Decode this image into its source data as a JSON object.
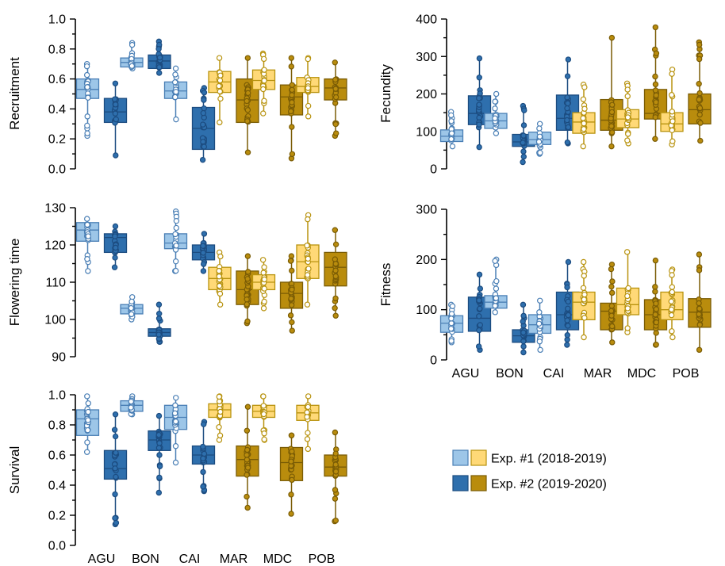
{
  "chart_data": [
    {
      "id": "recruitment",
      "type": "box",
      "ylabel": "Recruitment",
      "ylim": [
        0.0,
        1.0
      ],
      "yticks": [
        0.0,
        0.2,
        0.4,
        0.6,
        0.8,
        1.0
      ],
      "ytick_labels": [
        "0.0",
        "0.2",
        "0.4",
        "0.6",
        "0.8",
        "1.0"
      ],
      "categories": [
        "AGU",
        "BON",
        "CAI",
        "MAR",
        "MDC",
        "POB"
      ],
      "show_category_labels": false,
      "boxes": [
        {
          "cat": "AGU",
          "exp": 1,
          "min": 0.22,
          "q1": 0.47,
          "median": 0.53,
          "q3": 0.6,
          "max": 0.7
        },
        {
          "cat": "AGU",
          "exp": 2,
          "min": 0.09,
          "q1": 0.31,
          "median": 0.38,
          "q3": 0.47,
          "max": 0.57
        },
        {
          "cat": "BON",
          "exp": 1,
          "min": 0.67,
          "q1": 0.68,
          "median": 0.71,
          "q3": 0.74,
          "max": 0.84
        },
        {
          "cat": "BON",
          "exp": 2,
          "min": 0.64,
          "q1": 0.67,
          "median": 0.72,
          "q3": 0.76,
          "max": 0.85
        },
        {
          "cat": "CAI",
          "exp": 1,
          "min": 0.33,
          "q1": 0.47,
          "median": 0.52,
          "q3": 0.58,
          "max": 0.67
        },
        {
          "cat": "CAI",
          "exp": 2,
          "min": 0.06,
          "q1": 0.13,
          "median": 0.27,
          "q3": 0.41,
          "max": 0.54
        },
        {
          "cat": "MAR",
          "exp": 1,
          "min": 0.31,
          "q1": 0.51,
          "median": 0.58,
          "q3": 0.65,
          "max": 0.74
        },
        {
          "cat": "MAR",
          "exp": 2,
          "min": 0.11,
          "q1": 0.31,
          "median": 0.46,
          "q3": 0.6,
          "max": 0.74
        },
        {
          "cat": "MDC",
          "exp": 1,
          "min": 0.37,
          "q1": 0.53,
          "median": 0.59,
          "q3": 0.66,
          "max": 0.77
        },
        {
          "cat": "MDC",
          "exp": 2,
          "min": 0.07,
          "q1": 0.36,
          "median": 0.48,
          "q3": 0.56,
          "max": 0.74
        },
        {
          "cat": "POB",
          "exp": 1,
          "min": 0.35,
          "q1": 0.51,
          "median": 0.55,
          "q3": 0.61,
          "max": 0.74
        },
        {
          "cat": "POB",
          "exp": 2,
          "min": 0.22,
          "q1": 0.46,
          "median": 0.54,
          "q3": 0.6,
          "max": 0.71
        }
      ]
    },
    {
      "id": "fecundity",
      "type": "box",
      "ylabel": "Fecundity",
      "ylim": [
        0,
        400
      ],
      "yticks": [
        0,
        100,
        200,
        300,
        400
      ],
      "ytick_labels": [
        "0",
        "100",
        "200",
        "300",
        "400"
      ],
      "categories": [
        "AGU",
        "BON",
        "CAI",
        "MAR",
        "MDC",
        "POB"
      ],
      "show_category_labels": false,
      "boxes": [
        {
          "cat": "AGU",
          "exp": 1,
          "min": 60,
          "q1": 73,
          "median": 87,
          "q3": 104,
          "max": 152
        },
        {
          "cat": "AGU",
          "exp": 2,
          "min": 58,
          "q1": 118,
          "median": 148,
          "q3": 195,
          "max": 295
        },
        {
          "cat": "BON",
          "exp": 1,
          "min": 95,
          "q1": 108,
          "median": 128,
          "q3": 148,
          "max": 200
        },
        {
          "cat": "BON",
          "exp": 2,
          "min": 18,
          "q1": 60,
          "median": 72,
          "q3": 92,
          "max": 168
        },
        {
          "cat": "CAI",
          "exp": 1,
          "min": 40,
          "q1": 65,
          "median": 78,
          "q3": 98,
          "max": 120
        },
        {
          "cat": "CAI",
          "exp": 2,
          "min": 68,
          "q1": 103,
          "median": 135,
          "q3": 197,
          "max": 292
        },
        {
          "cat": "MAR",
          "exp": 1,
          "min": 60,
          "q1": 95,
          "median": 125,
          "q3": 150,
          "max": 225
        },
        {
          "cat": "MAR",
          "exp": 2,
          "min": 60,
          "q1": 103,
          "median": 130,
          "q3": 185,
          "max": 350
        },
        {
          "cat": "MDC",
          "exp": 1,
          "min": 68,
          "q1": 110,
          "median": 133,
          "q3": 158,
          "max": 228
        },
        {
          "cat": "MDC",
          "exp": 2,
          "min": 80,
          "q1": 133,
          "median": 148,
          "q3": 212,
          "max": 378
        },
        {
          "cat": "POB",
          "exp": 1,
          "min": 65,
          "q1": 100,
          "median": 120,
          "q3": 150,
          "max": 265
        },
        {
          "cat": "POB",
          "exp": 2,
          "min": 75,
          "q1": 120,
          "median": 158,
          "q3": 200,
          "max": 338
        }
      ]
    },
    {
      "id": "flowering-time",
      "type": "box",
      "ylabel": "Flowering time",
      "ylim": [
        90,
        130
      ],
      "yticks": [
        90,
        100,
        110,
        120,
        130
      ],
      "ytick_labels": [
        "90",
        "100",
        "110",
        "120",
        "130"
      ],
      "categories": [
        "AGU",
        "BON",
        "CAI",
        "MAR",
        "MDC",
        "POB"
      ],
      "show_category_labels": false,
      "boxes": [
        {
          "cat": "AGU",
          "exp": 1,
          "min": 113,
          "q1": 121,
          "median": 124,
          "q3": 126,
          "max": 127
        },
        {
          "cat": "AGU",
          "exp": 2,
          "min": 114,
          "q1": 118,
          "median": 122,
          "q3": 123,
          "max": 125
        },
        {
          "cat": "BON",
          "exp": 1,
          "min": 100,
          "q1": 101.5,
          "median": 103,
          "q3": 104,
          "max": 106
        },
        {
          "cat": "BON",
          "exp": 2,
          "min": 94,
          "q1": 95.5,
          "median": 96.5,
          "q3": 97.5,
          "max": 104
        },
        {
          "cat": "CAI",
          "exp": 1,
          "min": 113,
          "q1": 119,
          "median": 120.5,
          "q3": 123,
          "max": 129
        },
        {
          "cat": "CAI",
          "exp": 2,
          "min": 113,
          "q1": 116,
          "median": 118,
          "q3": 120,
          "max": 123
        },
        {
          "cat": "MAR",
          "exp": 1,
          "min": 104,
          "q1": 108,
          "median": 111,
          "q3": 114,
          "max": 118
        },
        {
          "cat": "MAR",
          "exp": 2,
          "min": 99,
          "q1": 104,
          "median": 108,
          "q3": 113,
          "max": 117
        },
        {
          "cat": "MDC",
          "exp": 1,
          "min": 103,
          "q1": 108,
          "median": 110,
          "q3": 112,
          "max": 116
        },
        {
          "cat": "MDC",
          "exp": 2,
          "min": 97,
          "q1": 103,
          "median": 107,
          "q3": 110,
          "max": 117
        },
        {
          "cat": "POB",
          "exp": 1,
          "min": 104,
          "q1": 111,
          "median": 115.5,
          "q3": 120,
          "max": 128
        },
        {
          "cat": "POB",
          "exp": 2,
          "min": 101,
          "q1": 109,
          "median": 114,
          "q3": 118,
          "max": 124
        }
      ]
    },
    {
      "id": "fitness",
      "type": "box",
      "ylabel": "Fitness",
      "ylim": [
        0,
        300
      ],
      "yticks": [
        0,
        100,
        200,
        300
      ],
      "ytick_labels": [
        "0",
        "100",
        "200",
        "300"
      ],
      "categories": [
        "AGU",
        "BON",
        "CAI",
        "MAR",
        "MDC",
        "POB"
      ],
      "show_category_labels": true,
      "boxes": [
        {
          "cat": "AGU",
          "exp": 1,
          "min": 35,
          "q1": 55,
          "median": 73,
          "q3": 88,
          "max": 110
        },
        {
          "cat": "AGU",
          "exp": 2,
          "min": 20,
          "q1": 57,
          "median": 83,
          "q3": 125,
          "max": 170
        },
        {
          "cat": "BON",
          "exp": 1,
          "min": 95,
          "q1": 103,
          "median": 115,
          "q3": 128,
          "max": 200
        },
        {
          "cat": "BON",
          "exp": 2,
          "min": 15,
          "q1": 35,
          "median": 48,
          "q3": 60,
          "max": 110
        },
        {
          "cat": "CAI",
          "exp": 1,
          "min": 20,
          "q1": 53,
          "median": 70,
          "q3": 90,
          "max": 118
        },
        {
          "cat": "CAI",
          "exp": 2,
          "min": 30,
          "q1": 60,
          "median": 90,
          "q3": 135,
          "max": 195
        },
        {
          "cat": "MAR",
          "exp": 1,
          "min": 45,
          "q1": 80,
          "median": 115,
          "q3": 135,
          "max": 195
        },
        {
          "cat": "MAR",
          "exp": 2,
          "min": 35,
          "q1": 60,
          "median": 97,
          "q3": 113,
          "max": 190
        },
        {
          "cat": "MDC",
          "exp": 1,
          "min": 55,
          "q1": 90,
          "median": 110,
          "q3": 143,
          "max": 215
        },
        {
          "cat": "MDC",
          "exp": 2,
          "min": 30,
          "q1": 60,
          "median": 90,
          "q3": 120,
          "max": 198
        },
        {
          "cat": "POB",
          "exp": 1,
          "min": 45,
          "q1": 80,
          "median": 100,
          "q3": 135,
          "max": 180
        },
        {
          "cat": "POB",
          "exp": 2,
          "min": 20,
          "q1": 65,
          "median": 95,
          "q3": 122,
          "max": 210
        }
      ]
    },
    {
      "id": "survival",
      "type": "box",
      "ylabel": "Survival",
      "ylim": [
        0.0,
        1.0
      ],
      "yticks": [
        0.0,
        0.2,
        0.4,
        0.6,
        0.8,
        1.0
      ],
      "ytick_labels": [
        "0.0",
        "0.2",
        "0.4",
        "0.6",
        "0.8",
        "1.0"
      ],
      "categories": [
        "AGU",
        "BON",
        "CAI",
        "MAR",
        "MDC",
        "POB"
      ],
      "show_category_labels": true,
      "boxes": [
        {
          "cat": "AGU",
          "exp": 1,
          "min": 0.62,
          "q1": 0.73,
          "median": 0.84,
          "q3": 0.9,
          "max": 0.99
        },
        {
          "cat": "AGU",
          "exp": 2,
          "min": 0.14,
          "q1": 0.44,
          "median": 0.51,
          "q3": 0.63,
          "max": 0.87
        },
        {
          "cat": "BON",
          "exp": 1,
          "min": 0.87,
          "q1": 0.89,
          "median": 0.93,
          "q3": 0.96,
          "max": 0.99
        },
        {
          "cat": "BON",
          "exp": 2,
          "min": 0.35,
          "q1": 0.63,
          "median": 0.7,
          "q3": 0.76,
          "max": 0.86
        },
        {
          "cat": "CAI",
          "exp": 1,
          "min": 0.55,
          "q1": 0.77,
          "median": 0.85,
          "q3": 0.93,
          "max": 0.98
        },
        {
          "cat": "CAI",
          "exp": 2,
          "min": 0.36,
          "q1": 0.54,
          "median": 0.6,
          "q3": 0.66,
          "max": 0.82
        },
        {
          "cat": "MAR",
          "exp": 1,
          "min": 0.7,
          "q1": 0.85,
          "median": 0.9,
          "q3": 0.94,
          "max": 0.99
        },
        {
          "cat": "MAR",
          "exp": 2,
          "min": 0.25,
          "q1": 0.46,
          "median": 0.57,
          "q3": 0.66,
          "max": 0.92
        },
        {
          "cat": "MDC",
          "exp": 1,
          "min": 0.7,
          "q1": 0.85,
          "median": 0.89,
          "q3": 0.93,
          "max": 0.99
        },
        {
          "cat": "MDC",
          "exp": 2,
          "min": 0.21,
          "q1": 0.43,
          "median": 0.55,
          "q3": 0.65,
          "max": 0.73
        },
        {
          "cat": "POB",
          "exp": 1,
          "min": 0.64,
          "q1": 0.83,
          "median": 0.88,
          "q3": 0.93,
          "max": 0.99
        },
        {
          "cat": "POB",
          "exp": 2,
          "min": 0.16,
          "q1": 0.46,
          "median": 0.52,
          "q3": 0.6,
          "max": 0.75
        }
      ]
    }
  ],
  "legend": {
    "items": [
      {
        "label": "Exp. #1 (2018-2019)",
        "colors": [
          "#9dc6e8",
          "#ffd977"
        ]
      },
      {
        "label": "Exp. #2 (2019-2020)",
        "colors": [
          "#2e6fad",
          "#b98c0d"
        ]
      }
    ]
  },
  "colors": {
    "blue_light": "#9dc6e8",
    "blue_dark": "#2e6fad",
    "gold_light": "#ffd977",
    "gold_dark": "#b98c0d",
    "blue_light_edge": "#4a7fb5",
    "blue_dark_edge": "#1c4c80",
    "gold_light_edge": "#b8930f",
    "gold_dark_edge": "#7a5c05"
  },
  "blue_categories": [
    "AGU",
    "BON",
    "CAI"
  ],
  "gold_categories": [
    "MAR",
    "MDC",
    "POB"
  ]
}
